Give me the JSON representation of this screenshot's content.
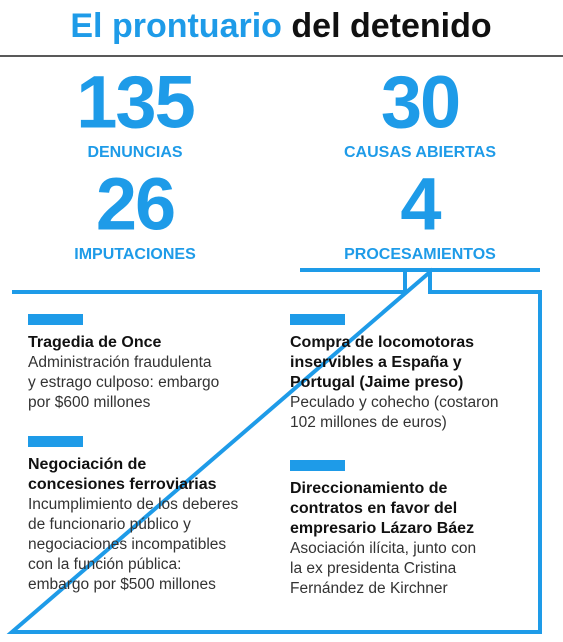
{
  "header": {
    "title_highlight": "El prontuario",
    "title_rest": "del detenido"
  },
  "stats": [
    {
      "value": 135,
      "label": "DENUNCIAS"
    },
    {
      "value": 30,
      "label": "CAUSAS ABIERTAS"
    },
    {
      "value": 26,
      "label": "IMPUTACIONES"
    },
    {
      "value": 4,
      "label": "PROCESAMIENTOS"
    }
  ],
  "cases": [
    {
      "title": [
        "Tragedia de Once"
      ],
      "description": [
        "Administración fraudulenta",
        "y estrago culposo: embargo",
        "por $600 millones"
      ]
    },
    {
      "title": [
        "Compra de locomotoras",
        "inservibles a España y",
        "Portugal (Jaime preso)"
      ],
      "description": [
        "Peculado y cohecho (costaron",
        "102 millones de euros)"
      ]
    },
    {
      "title": [
        "Negociación de",
        "concesiones ferroviarias"
      ],
      "description": [
        "Incumplimiento de los deberes",
        "de funcionario público y",
        "negociaciones incompatibles",
        "con la función pública:",
        "embargo por $500 millones"
      ]
    },
    {
      "title": [
        "Direccionamiento de",
        "contratos en favor del",
        "empresario Lázaro Báez"
      ],
      "description": [
        "Asociación ilícita, junto con",
        "la ex presidenta Cristina",
        "Fernández de Kirchner"
      ]
    }
  ]
}
